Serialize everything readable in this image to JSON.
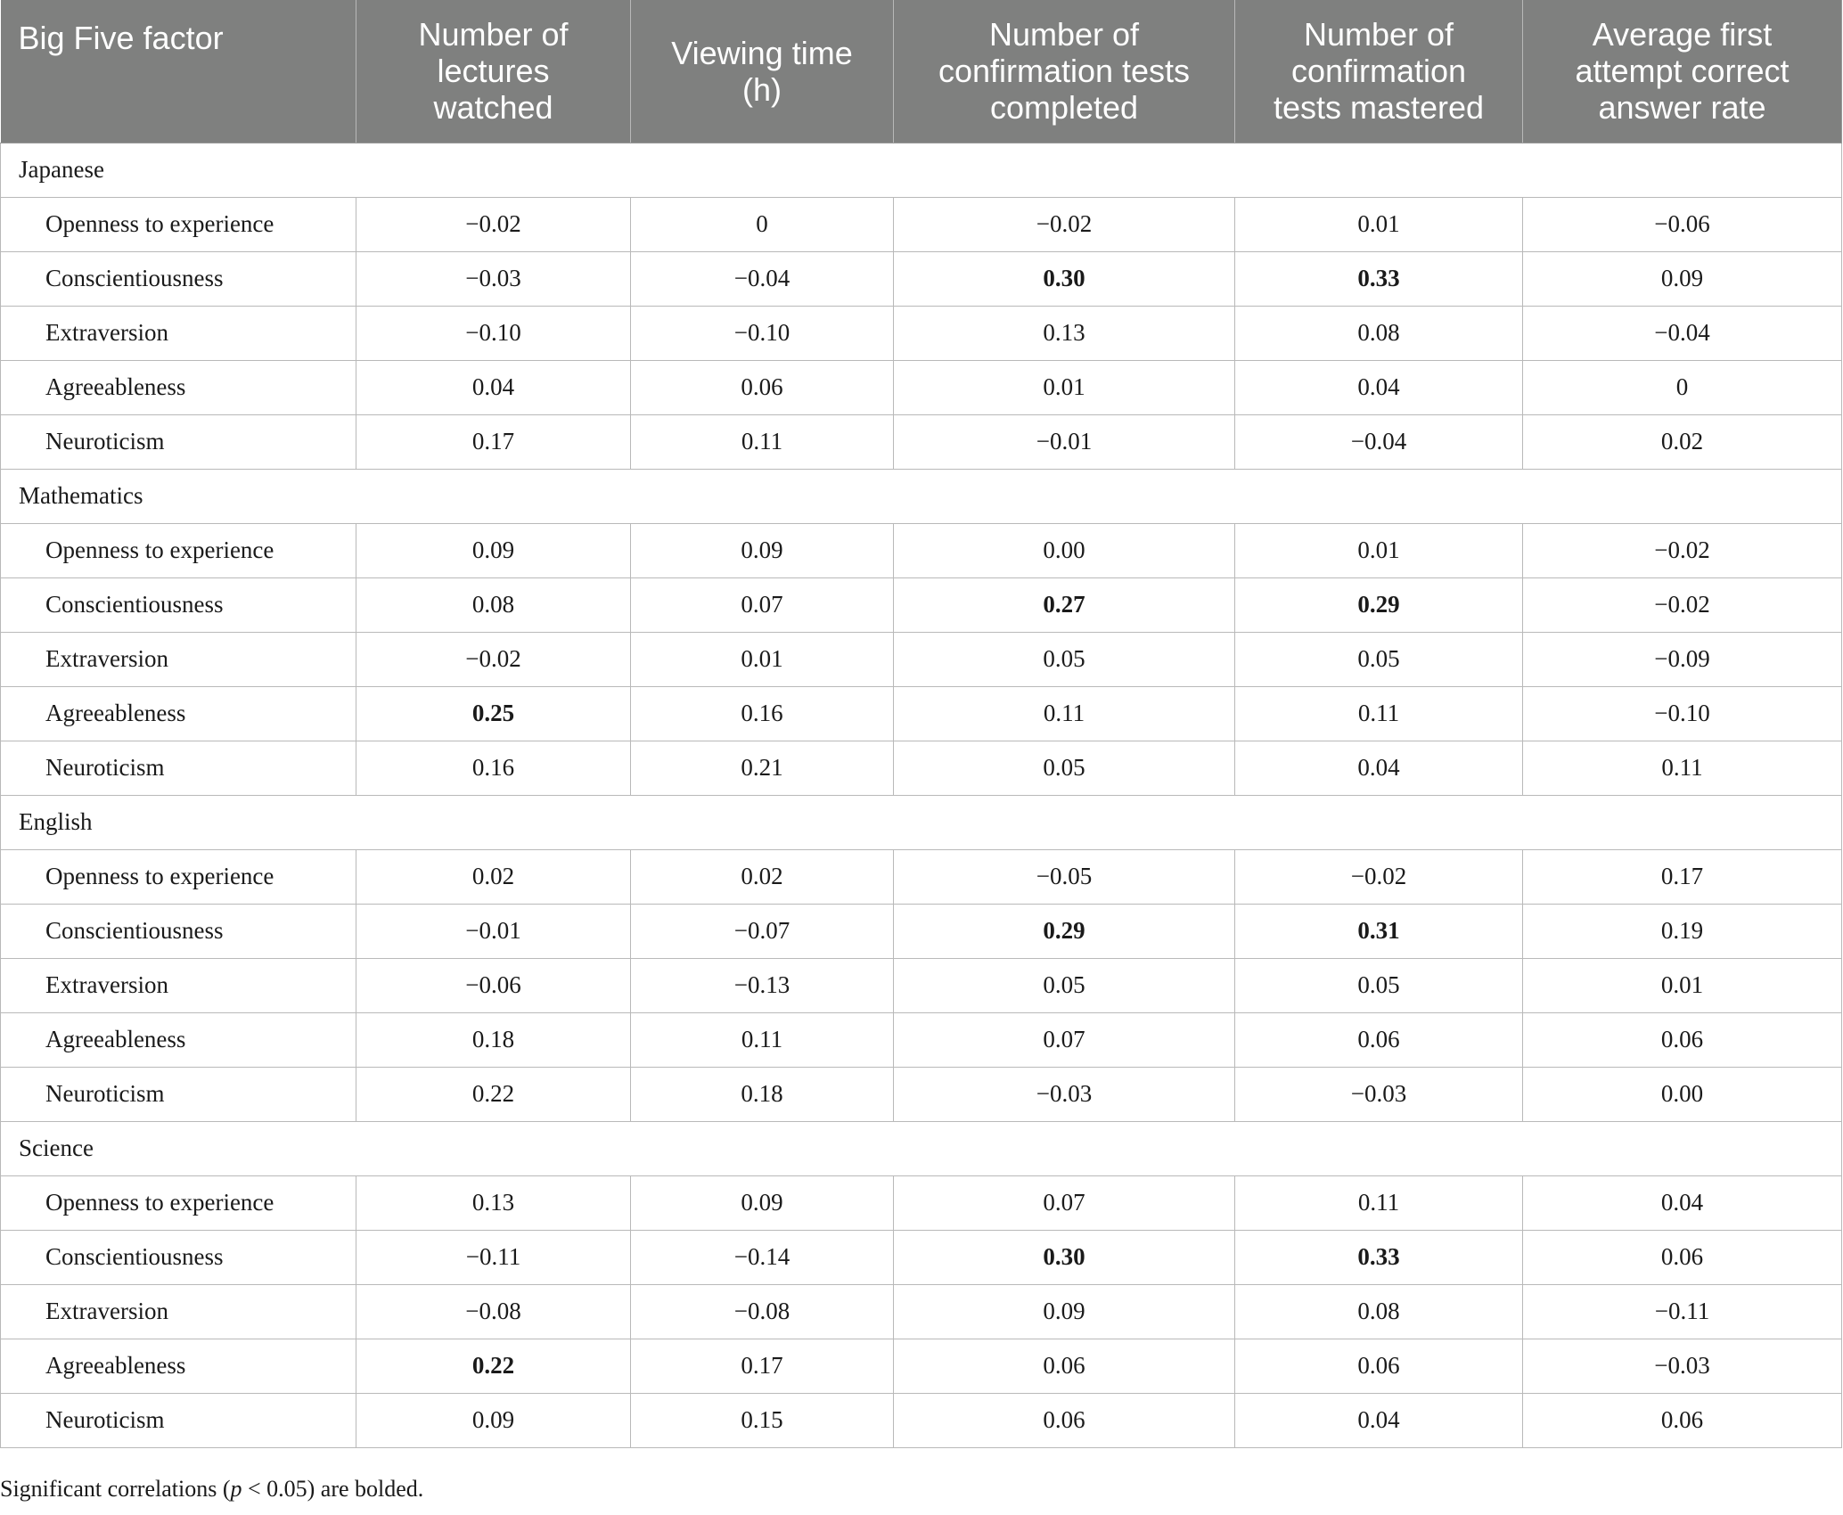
{
  "table": {
    "headers": [
      "Big Five factor",
      "Number of lectures watched",
      "Viewing time (h)",
      "Number of confirmation tests completed",
      "Number of confirmation tests mastered",
      "Average first attempt correct answer rate"
    ],
    "header_lines": [
      [
        "Big Five factor"
      ],
      [
        "Number of",
        "lectures",
        "watched"
      ],
      [
        "Viewing time",
        "(h)"
      ],
      [
        "Number of",
        "confirmation tests",
        "completed"
      ],
      [
        "Number of",
        "confirmation",
        "tests mastered"
      ],
      [
        "Average first",
        "attempt correct",
        "answer rate"
      ]
    ],
    "groups": [
      {
        "label": "Japanese",
        "rows": [
          {
            "factor": "Openness to experience",
            "values": [
              "−0.02",
              "0",
              "−0.02",
              "0.01",
              "−0.06"
            ],
            "bold": [
              false,
              false,
              false,
              false,
              false
            ]
          },
          {
            "factor": "Conscientiousness",
            "values": [
              "−0.03",
              "−0.04",
              "0.30",
              "0.33",
              "0.09"
            ],
            "bold": [
              false,
              false,
              true,
              true,
              false
            ]
          },
          {
            "factor": "Extraversion",
            "values": [
              "−0.10",
              "−0.10",
              "0.13",
              "0.08",
              "−0.04"
            ],
            "bold": [
              false,
              false,
              false,
              false,
              false
            ]
          },
          {
            "factor": "Agreeableness",
            "values": [
              "0.04",
              "0.06",
              "0.01",
              "0.04",
              "0"
            ],
            "bold": [
              false,
              false,
              false,
              false,
              false
            ]
          },
          {
            "factor": "Neuroticism",
            "values": [
              "0.17",
              "0.11",
              "−0.01",
              "−0.04",
              "0.02"
            ],
            "bold": [
              false,
              false,
              false,
              false,
              false
            ]
          }
        ]
      },
      {
        "label": "Mathematics",
        "rows": [
          {
            "factor": "Openness to experience",
            "values": [
              "0.09",
              "0.09",
              "0.00",
              "0.01",
              "−0.02"
            ],
            "bold": [
              false,
              false,
              false,
              false,
              false
            ]
          },
          {
            "factor": "Conscientiousness",
            "values": [
              "0.08",
              "0.07",
              "0.27",
              "0.29",
              "−0.02"
            ],
            "bold": [
              false,
              false,
              true,
              true,
              false
            ]
          },
          {
            "factor": "Extraversion",
            "values": [
              "−0.02",
              "0.01",
              "0.05",
              "0.05",
              "−0.09"
            ],
            "bold": [
              false,
              false,
              false,
              false,
              false
            ]
          },
          {
            "factor": "Agreeableness",
            "values": [
              "0.25",
              "0.16",
              "0.11",
              "0.11",
              "−0.10"
            ],
            "bold": [
              true,
              false,
              false,
              false,
              false
            ]
          },
          {
            "factor": "Neuroticism",
            "values": [
              "0.16",
              "0.21",
              "0.05",
              "0.04",
              "0.11"
            ],
            "bold": [
              false,
              false,
              false,
              false,
              false
            ]
          }
        ]
      },
      {
        "label": "English",
        "rows": [
          {
            "factor": "Openness to experience",
            "values": [
              "0.02",
              "0.02",
              "−0.05",
              "−0.02",
              "0.17"
            ],
            "bold": [
              false,
              false,
              false,
              false,
              false
            ]
          },
          {
            "factor": "Conscientiousness",
            "values": [
              "−0.01",
              "−0.07",
              "0.29",
              "0.31",
              "0.19"
            ],
            "bold": [
              false,
              false,
              true,
              true,
              false
            ]
          },
          {
            "factor": "Extraversion",
            "values": [
              "−0.06",
              "−0.13",
              "0.05",
              "0.05",
              "0.01"
            ],
            "bold": [
              false,
              false,
              false,
              false,
              false
            ]
          },
          {
            "factor": "Agreeableness",
            "values": [
              "0.18",
              "0.11",
              "0.07",
              "0.06",
              "0.06"
            ],
            "bold": [
              false,
              false,
              false,
              false,
              false
            ]
          },
          {
            "factor": "Neuroticism",
            "values": [
              "0.22",
              "0.18",
              "−0.03",
              "−0.03",
              "0.00"
            ],
            "bold": [
              false,
              false,
              false,
              false,
              false
            ]
          }
        ]
      },
      {
        "label": "Science",
        "rows": [
          {
            "factor": "Openness to experience",
            "values": [
              "0.13",
              "0.09",
              "0.07",
              "0.11",
              "0.04"
            ],
            "bold": [
              false,
              false,
              false,
              false,
              false
            ]
          },
          {
            "factor": "Conscientiousness",
            "values": [
              "−0.11",
              "−0.14",
              "0.30",
              "0.33",
              "0.06"
            ],
            "bold": [
              false,
              false,
              true,
              true,
              false
            ]
          },
          {
            "factor": "Extraversion",
            "values": [
              "−0.08",
              "−0.08",
              "0.09",
              "0.08",
              "−0.11"
            ],
            "bold": [
              false,
              false,
              false,
              false,
              false
            ]
          },
          {
            "factor": "Agreeableness",
            "values": [
              "0.22",
              "0.17",
              "0.06",
              "0.06",
              "−0.03"
            ],
            "bold": [
              true,
              false,
              false,
              false,
              false
            ]
          },
          {
            "factor": "Neuroticism",
            "values": [
              "0.09",
              "0.15",
              "0.06",
              "0.04",
              "0.06"
            ],
            "bold": [
              false,
              false,
              false,
              false,
              false
            ]
          }
        ]
      }
    ]
  },
  "footnote": {
    "before": "Significant correlations (",
    "italic": "p",
    "after": " < 0.05) are bolded."
  },
  "colors": {
    "header_background": "#7f807f",
    "header_text": "#ffffff",
    "grid_line": "#b9b9b9"
  }
}
